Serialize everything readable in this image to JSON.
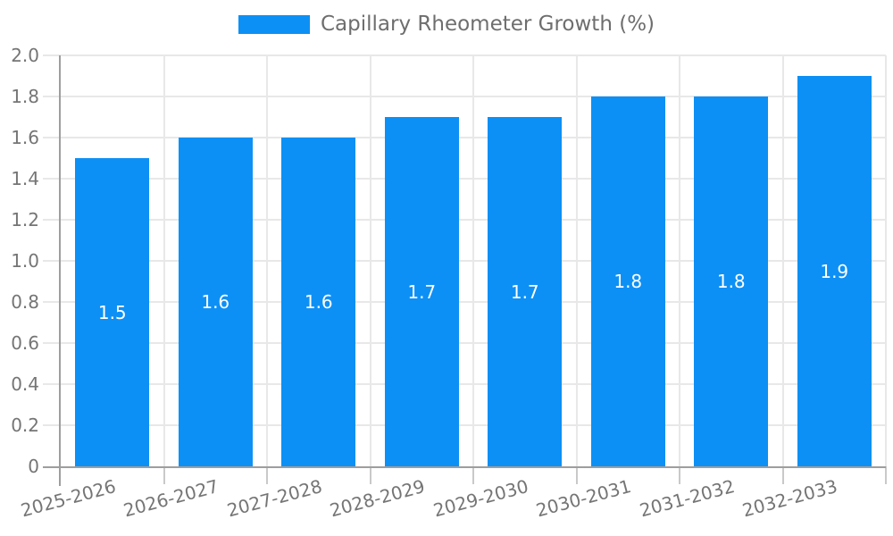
{
  "colors": {
    "bar": "#0d90f5",
    "axis": "#9e9e9e",
    "grid": "#e8e8e8",
    "tick_minor": "#c9c9c9",
    "text": "#757575",
    "legend_text": "#6e6e6e",
    "value_text": "#ffffff",
    "background": "#ffffff"
  },
  "chart_data": {
    "type": "bar",
    "title": "Capillary Rheometer Growth (%)",
    "legend": {
      "position": "top",
      "entries": [
        "Capillary Rheometer Growth (%)"
      ]
    },
    "categories": [
      "2025-2026",
      "2026-2027",
      "2027-2028",
      "2028-2029",
      "2029-2030",
      "2030-2031",
      "2031-2032",
      "2032-2033"
    ],
    "values": [
      1.5,
      1.6,
      1.6,
      1.7,
      1.7,
      1.8,
      1.8,
      1.9
    ],
    "value_labels": [
      "1.5",
      "1.6",
      "1.6",
      "1.7",
      "1.7",
      "1.8",
      "1.8",
      "1.9"
    ],
    "xlabel": "",
    "ylabel": "",
    "ylim": [
      0,
      2
    ],
    "y_ticks": [
      "0",
      "0.2",
      "0.4",
      "0.6",
      "0.8",
      "1.0",
      "1.2",
      "1.4",
      "1.6",
      "1.8",
      "2.0"
    ],
    "grid": true
  }
}
